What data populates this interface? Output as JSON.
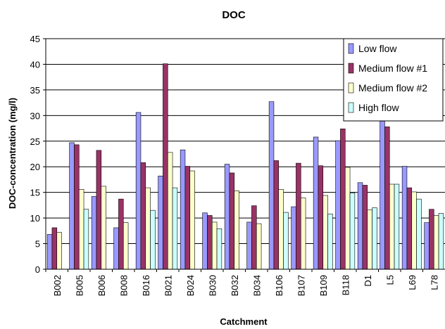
{
  "chart_data": {
    "type": "bar",
    "title": "DOC",
    "xlabel": "Catchment",
    "ylabel": "DOC-concentration (mg/l)",
    "ylim": [
      0,
      45
    ],
    "yticks": [
      0,
      5,
      10,
      15,
      20,
      25,
      30,
      35,
      40,
      45
    ],
    "grid": true,
    "legend_position": "top-right",
    "categories": [
      "B002",
      "B005",
      "B006",
      "B008",
      "B016",
      "B021",
      "B024",
      "B030",
      "B032",
      "B034",
      "B106",
      "B107",
      "B109",
      "B118",
      "D1",
      "L5",
      "L69",
      "L78"
    ],
    "series": [
      {
        "name": "Low flow",
        "color": "#9999FF",
        "values": [
          6.8,
          24.7,
          14.2,
          8.1,
          30.6,
          18.2,
          23.3,
          11.0,
          20.5,
          9.2,
          32.7,
          12.2,
          25.8,
          25.1,
          16.9,
          28.9,
          20.1,
          9.1
        ]
      },
      {
        "name": "Medium flow #1",
        "color": "#993366",
        "values": [
          8.1,
          24.3,
          23.2,
          13.7,
          20.8,
          40.1,
          20.1,
          10.5,
          18.8,
          12.4,
          21.2,
          20.7,
          20.2,
          27.4,
          16.4,
          27.8,
          15.9,
          11.7
        ]
      },
      {
        "name": "Medium flow #2",
        "color": "#FFFFCC",
        "values": [
          7.2,
          15.6,
          16.2,
          9.1,
          15.9,
          22.8,
          19.2,
          9.2,
          15.3,
          8.9,
          15.6,
          13.9,
          14.4,
          19.9,
          11.6,
          16.6,
          15.1,
          10.5
        ]
      },
      {
        "name": "High flow",
        "color": "#CCFFFF",
        "values": [
          null,
          11.7,
          null,
          null,
          11.5,
          15.9,
          null,
          7.9,
          null,
          null,
          11.1,
          null,
          10.8,
          14.9,
          12.0,
          16.6,
          13.7,
          10.9
        ]
      }
    ]
  }
}
